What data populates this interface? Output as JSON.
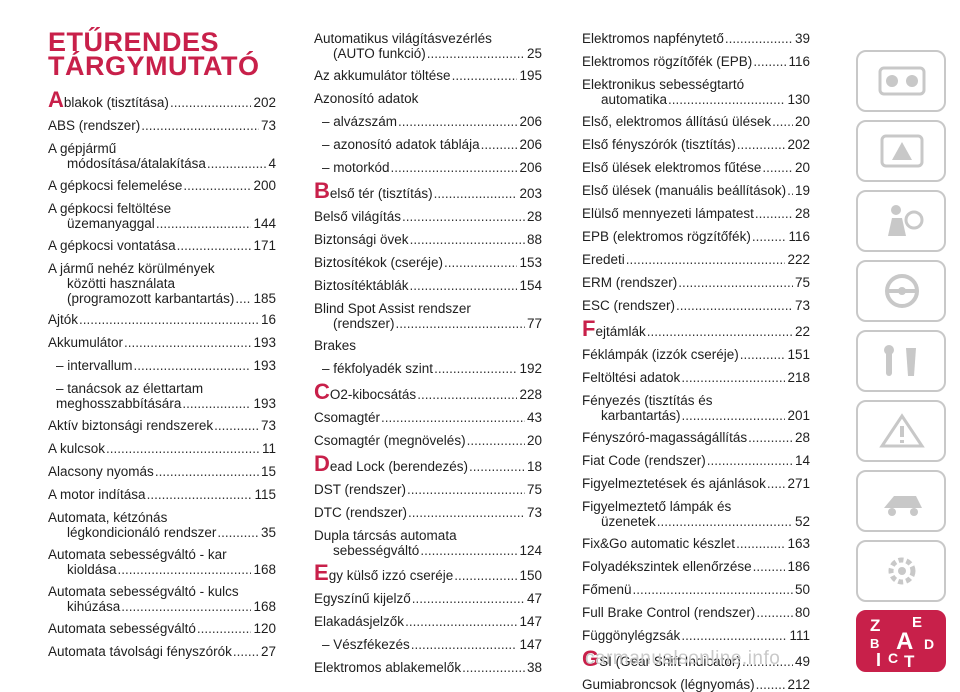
{
  "title": {
    "line1": "ETŰRENDES",
    "line2": "TÁRGYMUTATÓ"
  },
  "columns": [
    [
      {
        "text": "blakok (tisztítása)",
        "lead": "A",
        "page": "202"
      },
      {
        "text": "ABS (rendszer)",
        "page": "73"
      },
      {
        "lines": [
          "A gépjármű"
        ],
        "text": "módosítása/átalakítása",
        "page": "4"
      },
      {
        "text": "A gépkocsi felemelése",
        "page": "200"
      },
      {
        "lines": [
          "A gépkocsi feltöltése"
        ],
        "text": "üzemanyaggal",
        "page": "144"
      },
      {
        "text": "A gépkocsi vontatása",
        "page": "171"
      },
      {
        "lines": [
          "A jármű nehéz körülmények",
          "közötti használata"
        ],
        "text": "(programozott karbantartás)",
        "page": "185"
      },
      {
        "text": "Ajtók",
        "page": "16"
      },
      {
        "text": "Akkumulátor",
        "page": "193"
      },
      {
        "text": "– intervallum",
        "page": "193",
        "sub": true
      },
      {
        "lines": [
          "– tanácsok az élettartam"
        ],
        "text": "meghosszabbítására",
        "page": "193",
        "sub": true
      },
      {
        "text": "Aktív biztonsági rendszerek",
        "page": "73"
      },
      {
        "text": "A kulcsok",
        "page": "11"
      },
      {
        "text": "Alacsony nyomás",
        "page": "15"
      },
      {
        "text": "A motor indítása",
        "page": "115"
      },
      {
        "lines": [
          "Automata, kétzónás"
        ],
        "text": "légkondicionáló rendszer",
        "page": "35"
      },
      {
        "lines": [
          "Automata sebességváltó - kar"
        ],
        "text": "kioldása",
        "page": "168"
      },
      {
        "lines": [
          "Automata sebességváltó - kulcs"
        ],
        "text": "kihúzása",
        "page": "168"
      },
      {
        "text": "Automata sebességváltó",
        "page": "120"
      },
      {
        "text": "Automata távolsági fényszórók",
        "page": "27"
      }
    ],
    [
      {
        "lines": [
          "Automatikus világításvezérlés"
        ],
        "text": "(AUTO funkció)",
        "page": "25"
      },
      {
        "text": "Az akkumulátor töltése",
        "page": "195"
      },
      {
        "heading": "Azonosító adatok"
      },
      {
        "text": "– alvázszám",
        "page": "206",
        "sub": true
      },
      {
        "text": "– azonosító adatok táblája",
        "page": "206",
        "sub": true
      },
      {
        "text": "– motorkód",
        "page": "206",
        "sub": true
      },
      {
        "text": "első tér (tisztítás)",
        "lead": "B",
        "page": "203"
      },
      {
        "text": "Belső világítás",
        "page": "28"
      },
      {
        "text": "Biztonsági övek",
        "page": "88"
      },
      {
        "text": "Biztosítékok (cseréje)",
        "page": "153"
      },
      {
        "text": "Biztosítéktáblák",
        "page": "154"
      },
      {
        "lines": [
          "Blind Spot Assist rendszer"
        ],
        "text": "(rendszer)",
        "page": "77"
      },
      {
        "heading": "Brakes"
      },
      {
        "text": "– fékfolyadék szint",
        "page": "192",
        "sub": true
      },
      {
        "text": "O2-kibocsátás",
        "lead": "C",
        "page": "228"
      },
      {
        "text": "Csomagtér",
        "page": "43"
      },
      {
        "text": "Csomagtér (megnövelés)",
        "page": "20"
      },
      {
        "text": "ead Lock (berendezés)",
        "lead": "D",
        "page": "18"
      },
      {
        "text": "DST (rendszer)",
        "page": "75"
      },
      {
        "text": "DTC (rendszer)",
        "page": "73"
      },
      {
        "lines": [
          "Dupla tárcsás automata"
        ],
        "text": "sebességváltó",
        "page": "124"
      },
      {
        "text": "gy külső izzó cseréje",
        "lead": "E",
        "page": "150"
      },
      {
        "text": "Egyszínű kijelző",
        "page": "47"
      },
      {
        "text": "Elakadásjelzők",
        "page": "147"
      },
      {
        "text": "– Vészfékezés",
        "page": "147",
        "sub": true
      },
      {
        "text": "Elektromos ablakemelők",
        "page": "38"
      }
    ],
    [
      {
        "text": "Elektromos napfénytető",
        "page": "39"
      },
      {
        "text": "Elektromos rögzítőfék (EPB)",
        "page": "116"
      },
      {
        "lines": [
          "Elektronikus sebességtartó"
        ],
        "text": "automatika",
        "page": "130"
      },
      {
        "text": "Első, elektromos állítású ülések",
        "page": "20"
      },
      {
        "text": "Első fényszórók (tisztítás)",
        "page": "202"
      },
      {
        "text": "Első ülések elektromos fűtése",
        "page": "20"
      },
      {
        "text": "Első ülések (manuális beállítások)",
        "page": "19"
      },
      {
        "text": "Elülső mennyezeti lámpatest",
        "page": "28"
      },
      {
        "text": "EPB (elektromos rögzítőfék)",
        "page": "116"
      },
      {
        "text": "Eredeti",
        "page": "222"
      },
      {
        "text": "ERM (rendszer)",
        "page": "75"
      },
      {
        "text": "ESC (rendszer)",
        "page": "73"
      },
      {
        "text": "ejtámlák",
        "lead": "F",
        "page": "22"
      },
      {
        "text": "Féklámpák (izzók cseréje)",
        "page": "151"
      },
      {
        "text": "Feltöltési adatok",
        "page": "218"
      },
      {
        "lines": [
          "Fényezés (tisztítás és"
        ],
        "text": "karbantartás)",
        "page": "201"
      },
      {
        "text": "Fényszóró-magasságállítás",
        "page": "28"
      },
      {
        "text": "Fiat Code (rendszer)",
        "page": "14"
      },
      {
        "text": "Figyelmeztetések és ajánlások",
        "page": "271"
      },
      {
        "lines": [
          "Figyelmeztető lámpák és"
        ],
        "text": "üzenetek",
        "page": "52"
      },
      {
        "text": "Fix&Go automatic készlet",
        "page": "163"
      },
      {
        "text": "Folyadékszintek ellenőrzése",
        "page": "186"
      },
      {
        "text": "Főmenü",
        "page": "50"
      },
      {
        "text": "Full Brake Control (rendszer)",
        "page": "80"
      },
      {
        "text": "Függönylégzsák",
        "page": "111"
      },
      {
        "text": "SI (Gear Shift Indicator)",
        "lead": "G",
        "page": "49"
      },
      {
        "text": "Gumiabroncsok (légnyomás)",
        "page": "212"
      }
    ]
  ],
  "sidebar": {
    "active_letters": [
      "Z",
      "E",
      "B",
      "A",
      "D",
      "C",
      "T",
      "I"
    ],
    "icons": [
      "car-dashboard-icon",
      "warning-light-icon",
      "seat-airbag-icon",
      "steering-wheel-icon",
      "tools-icon",
      "road-warning-icon",
      "wrench-car-icon",
      "gear-settings-icon",
      "index-letters-icon"
    ]
  },
  "watermark": "carmanualsonline.info",
  "colors": {
    "accent": "#c8204a",
    "text": "#1e1e1e",
    "tab_border": "#c8c8c8"
  }
}
